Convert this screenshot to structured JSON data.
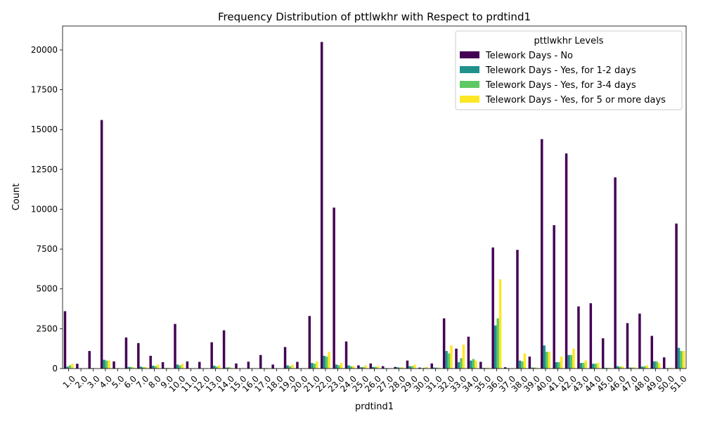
{
  "chart_data": {
    "type": "bar",
    "title": "Frequency Distribution of pttlwkhr with Respect to prdtind1",
    "xlabel": "prdtind1",
    "ylabel": "Count",
    "ylim": [
      0,
      21500
    ],
    "yticks": [
      0,
      2500,
      5000,
      7500,
      10000,
      12500,
      15000,
      17500,
      20000
    ],
    "grid": false,
    "legend": {
      "title": "pttlwkhr Levels",
      "placement": "top-right"
    },
    "categories": [
      "1.0",
      "2.0",
      "3.0",
      "4.0",
      "5.0",
      "6.0",
      "7.0",
      "8.0",
      "9.0",
      "10.0",
      "11.0",
      "12.0",
      "13.0",
      "14.0",
      "15.0",
      "16.0",
      "17.0",
      "18.0",
      "19.0",
      "20.0",
      "21.0",
      "22.0",
      "23.0",
      "24.0",
      "25.0",
      "26.0",
      "27.0",
      "28.0",
      "29.0",
      "30.0",
      "31.0",
      "32.0",
      "33.0",
      "34.0",
      "35.0",
      "36.0",
      "37.0",
      "38.0",
      "39.0",
      "40.0",
      "41.0",
      "42.0",
      "43.0",
      "44.0",
      "45.0",
      "46.0",
      "47.0",
      "48.0",
      "49.0",
      "50.0",
      "51.0"
    ],
    "series": [
      {
        "name": "Telework Days - No",
        "color": "#440154",
        "values": [
          3600,
          300,
          1100,
          15600,
          450,
          1950,
          1600,
          800,
          400,
          2800,
          450,
          420,
          1650,
          2400,
          320,
          430,
          850,
          250,
          1350,
          420,
          3300,
          20500,
          10100,
          1700,
          200,
          320,
          150,
          100,
          500,
          60,
          320,
          3150,
          1250,
          2000,
          420,
          7600,
          80,
          7450,
          750,
          14400,
          9000,
          13500,
          3900,
          4100,
          1900,
          12000,
          2850,
          3450,
          2050,
          700,
          9100
        ]
      },
      {
        "name": "Telework Days - Yes, for 1-2 days",
        "color": "#21918c",
        "values": [
          120,
          20,
          30,
          550,
          20,
          100,
          120,
          180,
          30,
          250,
          20,
          20,
          180,
          60,
          20,
          20,
          30,
          20,
          200,
          20,
          350,
          800,
          250,
          200,
          80,
          100,
          30,
          80,
          150,
          20,
          60,
          1100,
          400,
          500,
          40,
          2700,
          30,
          500,
          60,
          1450,
          400,
          850,
          350,
          300,
          40,
          150,
          60,
          120,
          450,
          30,
          1300
        ]
      },
      {
        "name": "Telework Days - Yes, for 3-4 days",
        "color": "#5ec962",
        "values": [
          200,
          10,
          20,
          500,
          20,
          100,
          80,
          150,
          40,
          200,
          20,
          20,
          120,
          80,
          20,
          20,
          30,
          10,
          150,
          20,
          300,
          750,
          200,
          150,
          100,
          100,
          30,
          60,
          150,
          50,
          60,
          950,
          650,
          600,
          40,
          3150,
          20,
          450,
          60,
          1050,
          400,
          850,
          350,
          300,
          40,
          120,
          60,
          150,
          450,
          30,
          1100
        ]
      },
      {
        "name": "Telework Days - Yes, for 5 or more days",
        "color": "#fde725",
        "values": [
          300,
          10,
          20,
          500,
          20,
          80,
          100,
          250,
          40,
          300,
          20,
          30,
          200,
          60,
          20,
          30,
          40,
          10,
          250,
          30,
          450,
          1050,
          350,
          150,
          200,
          150,
          30,
          80,
          250,
          100,
          60,
          1450,
          1500,
          500,
          60,
          5600,
          30,
          950,
          60,
          1050,
          750,
          1250,
          500,
          350,
          40,
          150,
          80,
          200,
          350,
          50,
          1100
        ]
      }
    ]
  }
}
